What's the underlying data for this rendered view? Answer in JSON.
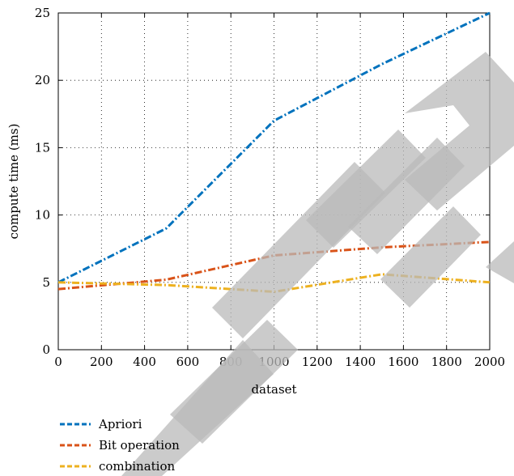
{
  "chart_data": {
    "type": "line",
    "xlabel": "dataset",
    "ylabel": "compute time (ms)",
    "xlim": [
      0,
      2000
    ],
    "ylim": [
      0,
      25
    ],
    "xticks": [
      0,
      200,
      400,
      600,
      800,
      1000,
      1200,
      1400,
      1600,
      1800,
      2000
    ],
    "yticks": [
      0,
      5,
      10,
      15,
      20,
      25
    ],
    "grid": true,
    "legend_position": "bottom-left, below plot",
    "series": [
      {
        "name": "Apriori",
        "color": "#0072BD",
        "x": [
          0,
          500,
          1000,
          1500,
          2000
        ],
        "y": [
          5,
          9,
          17,
          21.2,
          25
        ]
      },
      {
        "name": "Bit operation",
        "color": "#D95319",
        "x": [
          0,
          500,
          1000,
          1500,
          2000
        ],
        "y": [
          4.5,
          5.2,
          7,
          7.6,
          8
        ]
      },
      {
        "name": "combination",
        "color": "#EDB120",
        "x": [
          0,
          500,
          1000,
          1500,
          2000
        ],
        "y": [
          5,
          4.8,
          4.3,
          5.6,
          5
        ]
      }
    ]
  }
}
